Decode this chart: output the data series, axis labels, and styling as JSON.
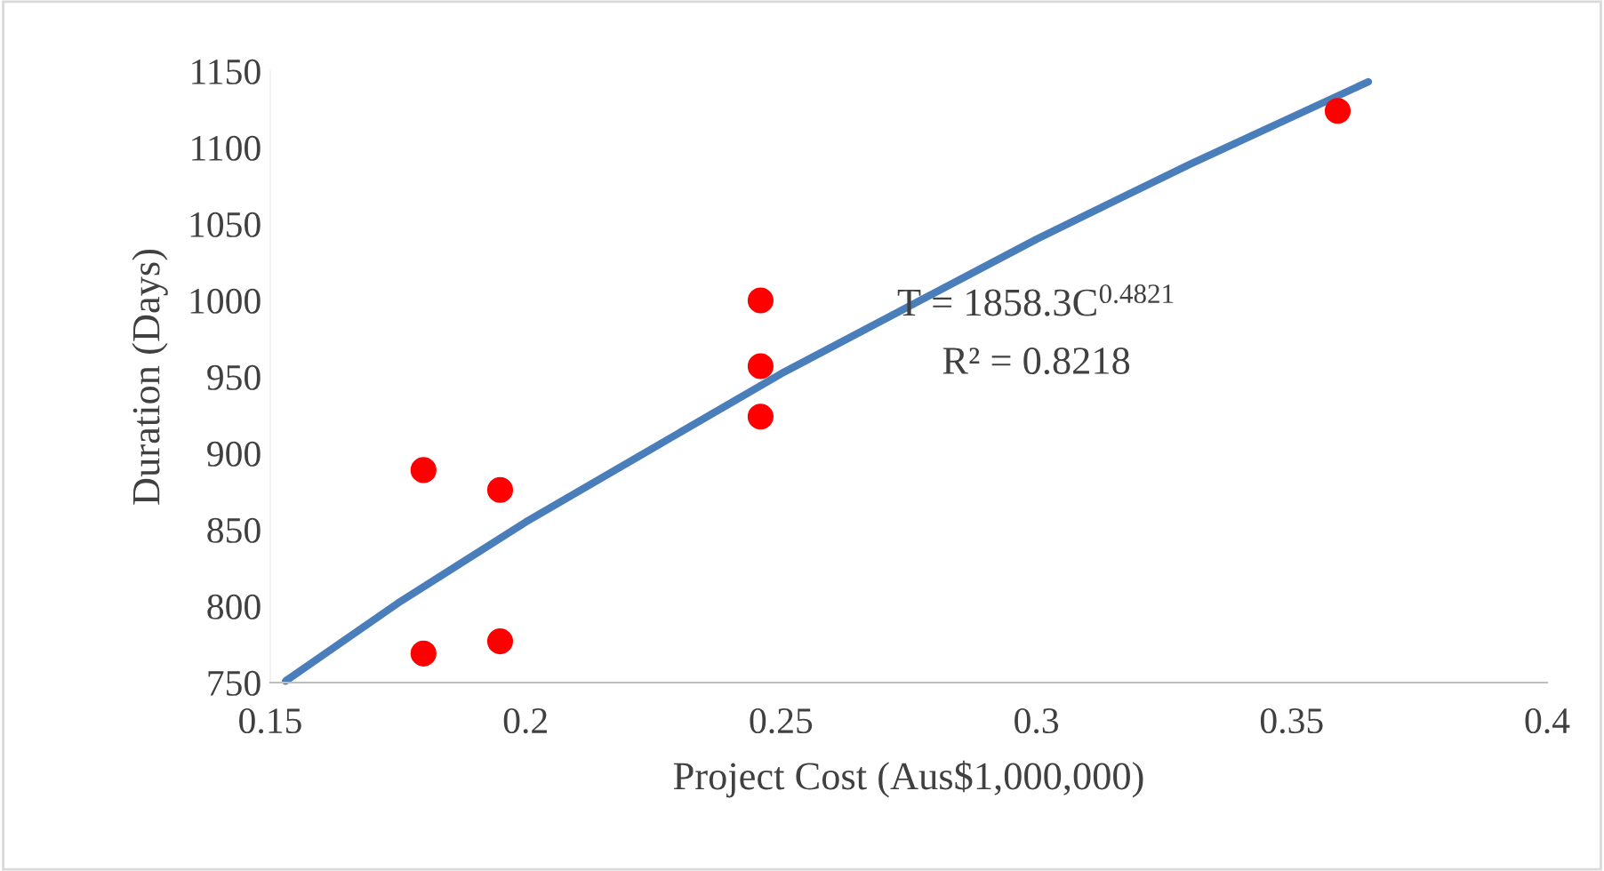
{
  "chart_data": {
    "type": "scatter",
    "xlabel": "Project Cost (Aus$1,000,000)",
    "ylabel": "Duration (Days)",
    "series": [
      {
        "color": "#ff0000",
        "marker": "circle",
        "x": [
          0.18,
          0.18,
          0.195,
          0.195,
          0.246,
          0.246,
          0.246,
          0.359
        ],
        "values": [
          889,
          769,
          876,
          777,
          1000,
          957,
          924,
          1124
        ]
      },
      {
        "type": "line",
        "color": "#4a7ebb",
        "marker": "none",
        "line_style": "solid",
        "x": [
          0.153,
          0.175,
          0.2,
          0.25,
          0.3,
          0.33,
          0.365
        ],
        "values": [
          751,
          802,
          855,
          952,
          1040,
          1089,
          1143
        ]
      }
    ],
    "xlim": [
      0.15,
      0.4
    ],
    "xticks": [
      0.15,
      0.2,
      0.25,
      0.3,
      0.35,
      0.4
    ],
    "ylim": [
      750,
      1150
    ],
    "yticks": [
      750,
      800,
      850,
      900,
      950,
      1000,
      1050,
      1100,
      1150
    ],
    "grid": false,
    "legend": false,
    "annotations": [
      "T = 1858.3C$^{0.4821}$",
      "R² = 0.8218"
    ]
  }
}
